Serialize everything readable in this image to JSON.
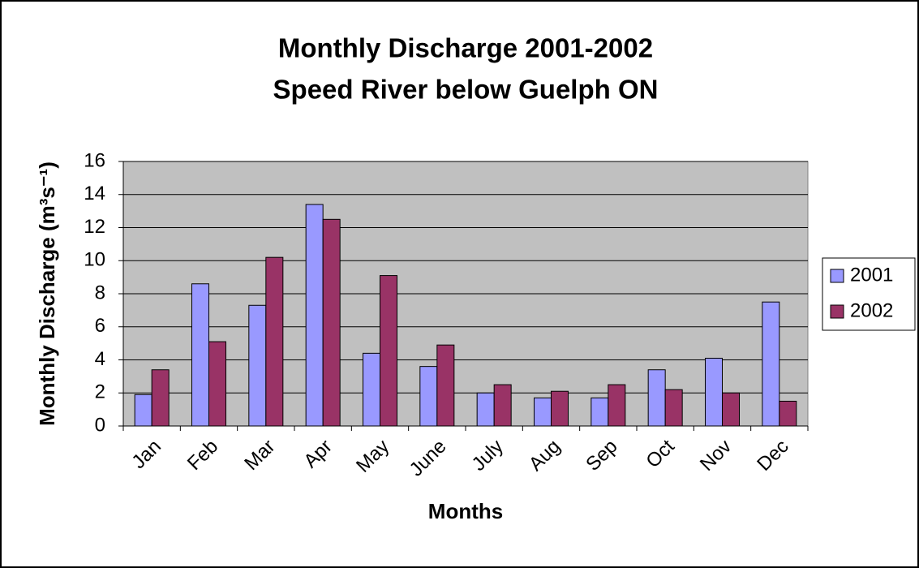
{
  "chart_data": {
    "type": "bar",
    "title": [
      "Monthly Discharge 2001-2002",
      "Speed River below Guelph ON"
    ],
    "x_label": "Months",
    "y_label": "Monthly Discharge (m³s⁻¹)",
    "categories": [
      "Jan",
      "Feb",
      "Mar",
      "Apr",
      "May",
      "June",
      "July",
      "Aug",
      "Sep",
      "Oct",
      "Nov",
      "Dec"
    ],
    "series": [
      {
        "name": "2001",
        "color": "#9999ff",
        "values": [
          1.9,
          8.6,
          7.3,
          13.4,
          4.4,
          3.6,
          2.0,
          1.7,
          1.7,
          3.4,
          4.1,
          7.5
        ]
      },
      {
        "name": "2002",
        "color": "#993366",
        "values": [
          3.4,
          5.1,
          10.2,
          12.5,
          9.1,
          4.9,
          2.5,
          2.1,
          2.5,
          2.2,
          2.0,
          1.5
        ]
      }
    ],
    "ylim": [
      0,
      16
    ],
    "yticks": [
      0,
      2,
      4,
      6,
      8,
      10,
      12,
      14,
      16
    ],
    "grid": true,
    "legend": "right",
    "plot_background": "#c0c0c0"
  }
}
